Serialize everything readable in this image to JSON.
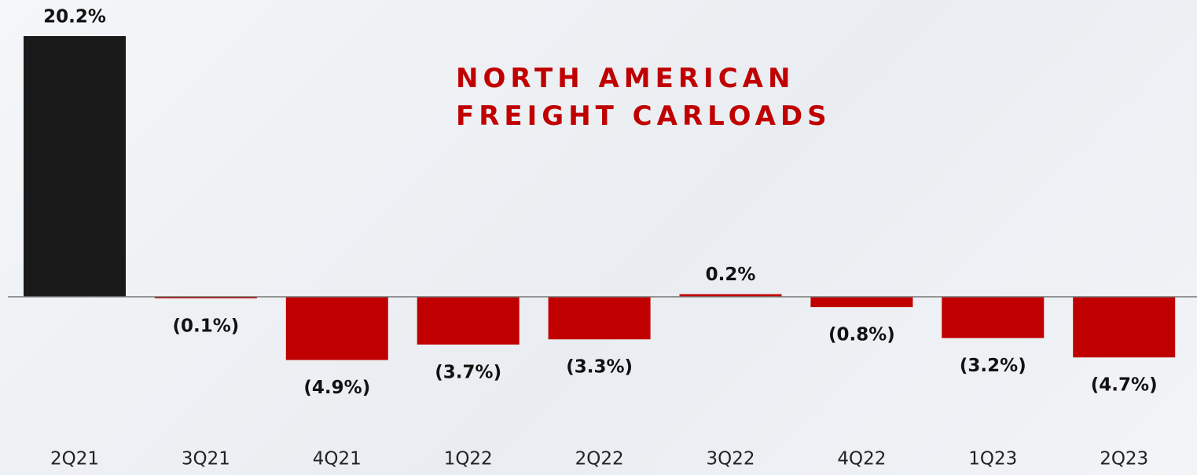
{
  "chart_data": {
    "type": "bar",
    "title": "NORTH AMERICAN FREIGHT CARLOADS",
    "categories": [
      "2Q21",
      "3Q21",
      "4Q21",
      "1Q22",
      "2Q22",
      "3Q22",
      "4Q22",
      "1Q23",
      "2Q23"
    ],
    "values": [
      20.2,
      -0.1,
      -4.9,
      -3.7,
      -3.3,
      0.2,
      -0.8,
      -3.2,
      -4.7
    ],
    "value_labels": [
      "20.2%",
      "(0.1%)",
      "(4.9%)",
      "(3.7%)",
      "(3.3%)",
      "0.2%",
      "(0.8%)",
      "(3.2%)",
      "(4.7%)"
    ],
    "colors": [
      "#1a1a1a",
      "#c00000",
      "#c00000",
      "#c00000",
      "#c00000",
      "#c00000",
      "#c00000",
      "#c00000",
      "#c00000"
    ]
  }
}
